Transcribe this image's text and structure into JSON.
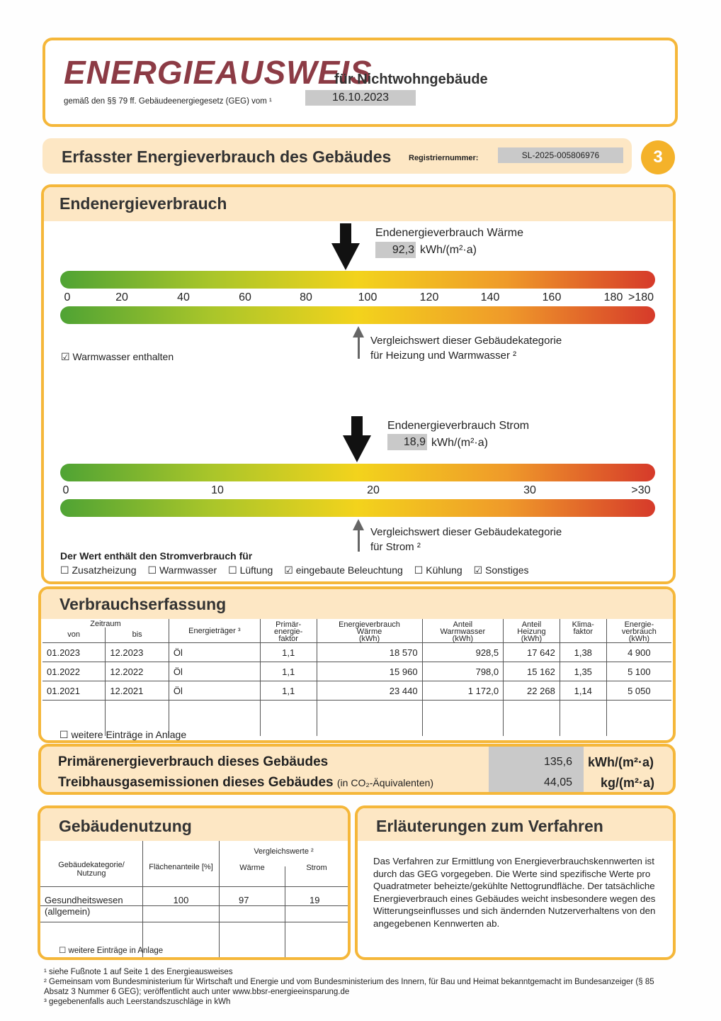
{
  "header": {
    "title": "ENERGIEAUSWEIS",
    "title_suffix": "für Nichtwohngebäude",
    "legal": "gemäß den §§ 79 ff. Gebäudeenergiegesetz (GEG) vom ¹",
    "date": "16.10.2023"
  },
  "section": {
    "title": "Erfasster Energieverbrauch des Gebäudes",
    "reg_label": "Registriernummer:",
    "reg_number": "SL-2025-005806976",
    "page_number": "3"
  },
  "endenergie": {
    "title": "Endenergieverbrauch",
    "waerme": {
      "label": "Endenergieverbrauch Wärme",
      "value": "92,3",
      "value_num": 92.3,
      "unit": "kWh/(m²·a)",
      "ticks": [
        "0",
        "20",
        "40",
        "60",
        "80",
        "100",
        "120",
        "140",
        "160",
        "180",
        ">180"
      ],
      "compare_line1": "Vergleichswert dieser Gebäudekategorie",
      "compare_line2": "für Heizung und Warmwasser ²",
      "compare_value": 97
    },
    "warmwasser_checkbox": {
      "checked": true,
      "label": "Warmwasser enthalten"
    },
    "strom": {
      "label": "Endenergieverbrauch Strom",
      "value": "18,9",
      "value_num": 18.9,
      "unit": "kWh/(m²·a)",
      "ticks": [
        "0",
        "10",
        "20",
        "30",
        ">30"
      ],
      "compare_line1": "Vergleichswert dieser Gebäudekategorie",
      "compare_line2": "für Strom ²",
      "compare_value": 19
    },
    "strom_includes_label": "Der Wert enthält den Stromverbrauch für",
    "strom_includes": [
      {
        "label": "Zusatzheizung",
        "checked": false
      },
      {
        "label": "Warmwasser",
        "checked": false
      },
      {
        "label": "Lüftung",
        "checked": false
      },
      {
        "label": "eingebaute Beleuchtung",
        "checked": true
      },
      {
        "label": "Kühlung",
        "checked": false
      },
      {
        "label": "Sonstiges",
        "checked": true
      }
    ]
  },
  "verbrauch": {
    "title": "Verbrauchserfassung",
    "headers": {
      "zeitraum": "Zeitraum",
      "von": "von",
      "bis": "bis",
      "traeger": "Energieträger ³",
      "pef": "Primär-\nenergie-\nfaktor",
      "ev_waerme": "Energieverbrauch\nWärme\n(kWh)",
      "ww": "Anteil\nWarmwasser\n(kWh)",
      "heiz": "Anteil\nHeizung\n(kWh)",
      "klima": "Klima-\nfaktor",
      "ev": "Energie-\nverbrauch\n(kWh)"
    },
    "rows": [
      [
        "01.2023",
        "12.2023",
        "Öl",
        "1,1",
        "18 570",
        "928,5",
        "17 642",
        "1,38",
        "4 900"
      ],
      [
        "01.2022",
        "12.2022",
        "Öl",
        "1,1",
        "15 960",
        "798,0",
        "15 162",
        "1,35",
        "5 100"
      ],
      [
        "01.2021",
        "12.2021",
        "Öl",
        "1,1",
        "23 440",
        "1 172,0",
        "22 268",
        "1,14",
        "5 050"
      ]
    ],
    "more": "weitere Einträge in Anlage"
  },
  "primaer": {
    "label1": "Primärenergieverbrauch dieses Gebäudes",
    "value1": "135,6",
    "unit1": "kWh/(m²·a)",
    "label2": "Treibhausgasemissionen dieses Gebäudes",
    "label2_suffix": "(in CO₂-Äquivalenten)",
    "value2": "44,05",
    "unit2": "kg/(m²·a)"
  },
  "nutzung": {
    "title": "Gebäudenutzung",
    "h_kat": "Gebäudekategorie/\nNutzung",
    "h_flaeche": "Flächenanteile [%]",
    "h_vergleich": "Vergleichswerte ²",
    "h_waerme": "Wärme",
    "h_strom": "Strom",
    "kat": "Gesundheitswesen",
    "kat2": "(allgemein)",
    "flaeche": "100",
    "waerme": "97",
    "strom": "19",
    "more": "weitere Einträge in Anlage"
  },
  "erlaeuterung": {
    "title": "Erläuterungen zum Verfahren",
    "text": "Das Verfahren zur Ermittlung von Energieverbrauchskennwerten ist durch das GEG vorgegeben. Die Werte sind spezifische Werte pro Quadratmeter beheizte/gekühlte Nettogrundfläche. Der tatsächliche Energieverbrauch eines Gebäudes weicht insbesondere wegen des Witterungseinflusses und sich ändernden Nutzerverhaltens von den angegebenen Kennwerten ab."
  },
  "footnotes": [
    "¹ siehe Fußnote 1 auf Seite 1 des Energieausweises",
    "² Gemeinsam vom Bundesministerium für Wirtschaft und Energie und vom Bundesministerium des Innern, für Bau und Heimat bekanntgemacht im Bundesanzeiger (§ 85 Absatz 3 Nummer 6 GEG); veröffentlicht auch unter www.bbsr-energieeinsparung.de",
    "³ gegebenenfalls auch Leerstandszuschläge in kWh"
  ]
}
